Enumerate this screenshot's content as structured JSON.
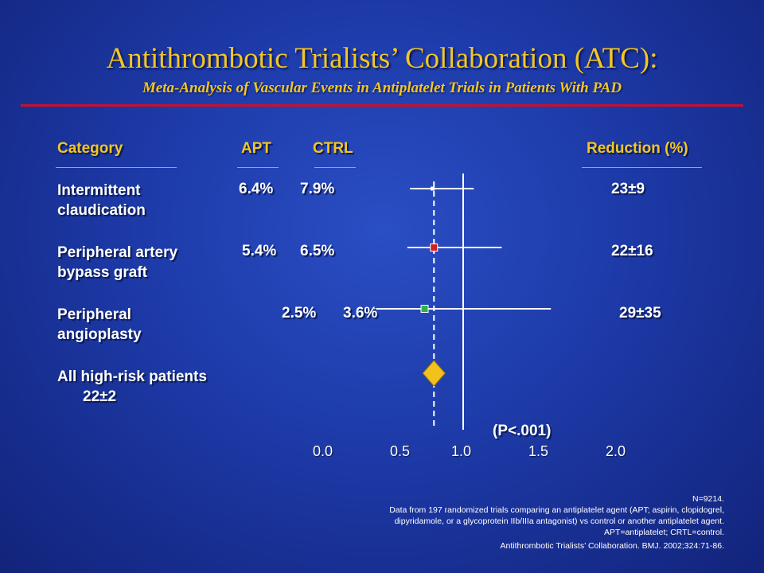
{
  "title": "Antithrombotic Trialists’ Collaboration (ATC):",
  "subtitle": "Meta-Analysis of Vascular Events in Antiplatelet Trials in Patients With PAD",
  "headers": {
    "category": "Category",
    "apt": "APT",
    "ctrl": "CTRL",
    "reduction": "Reduction (%)"
  },
  "rows": [
    {
      "label_line1": "Intermittent",
      "label_line2": "claudication",
      "apt": "6.4%",
      "ctrl": "7.9%",
      "reduction": "23±9"
    },
    {
      "label_line1": "Peripheral artery",
      "label_line2": "bypass graft",
      "apt": "5.4%",
      "ctrl": "6.5%",
      "reduction": "22±16"
    },
    {
      "label_line1": "Peripheral",
      "label_line2": "angioplasty",
      "apt": "2.5%",
      "ctrl": "3.6%",
      "reduction": "29±35"
    },
    {
      "label_line1": "All high-risk patients",
      "label_line2": "22±2"
    }
  ],
  "p_value": "(P<.001)",
  "chart_data": {
    "type": "scatter",
    "subtype": "forest-plot",
    "x_ticks": [
      "0.0",
      "0.5",
      "1.0",
      "1.5",
      "2.0"
    ],
    "x_range": [
      0.0,
      2.0
    ],
    "reference_line": 1.0,
    "pooled_estimate_line": 0.78,
    "series": [
      {
        "category": "Intermittent claudication",
        "estimate": 0.77,
        "ci_low": 0.6,
        "ci_high": 1.08,
        "marker": "square",
        "color": "#ffffff"
      },
      {
        "category": "Peripheral artery bypass graft",
        "estimate": 0.78,
        "ci_low": 0.58,
        "ci_high": 1.29,
        "marker": "square",
        "color": "#d21f1f"
      },
      {
        "category": "Peripheral angioplasty",
        "estimate": 0.71,
        "ci_low": 0.33,
        "ci_high": 1.66,
        "marker": "square",
        "color": "#2db34a"
      },
      {
        "category": "All high-risk patients",
        "estimate": 0.78,
        "ci_low": 0.71,
        "ci_high": 0.85,
        "marker": "diamond",
        "color": "#f2c11b"
      }
    ]
  },
  "footnotes": {
    "n": "N=9214.",
    "line1": "Data from 197 randomized trials comparing an antiplatelet agent (APT; aspirin, clopidogrel,",
    "line2": "dipyridamole, or a glycoprotein IIb/IIIa antagonist) vs control or another antiplatelet agent.",
    "line3": "APT=antiplatelet; CRTL=control.",
    "citation": "Antithrombotic Trialists’ Collaboration. BMJ. 2002;324:71-86."
  }
}
